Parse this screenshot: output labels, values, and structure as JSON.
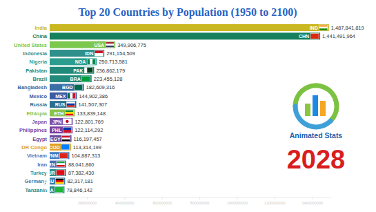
{
  "chart_data": {
    "type": "bar",
    "orientation": "horizontal",
    "title": "Top 20 Countries by Population (1950 to 2100)",
    "categories": [
      "India",
      "China",
      "United States",
      "Indonesia",
      "Nigeria",
      "Pakistan",
      "Brazil",
      "Bangladesh",
      "Mexico",
      "Russia",
      "Ethiopia",
      "Japan",
      "Philippines",
      "Egypt",
      "DR Congo",
      "Vietnam",
      "Iran",
      "Turkey",
      "Germany",
      "Tanzania"
    ],
    "codes": [
      "IND",
      "CHN",
      "USA",
      "IDN",
      "NGA",
      "PAK",
      "BRA",
      "BGD",
      "MEX",
      "RUS",
      "ETH",
      "JPN",
      "PHL",
      "EGY",
      "COD",
      "VNM",
      "IRN",
      "TUR",
      "DEU",
      "TZA"
    ],
    "values": [
      1487841819,
      1441491964,
      349906775,
      291154509,
      250713581,
      236862179,
      223455128,
      182609316,
      144902386,
      141507307,
      133839148,
      122801769,
      122114292,
      116197457,
      113314199,
      104887313,
      88041860,
      87382430,
      82317181,
      78846142
    ],
    "value_labels": [
      "1,487,841,819",
      "1,441,491,964",
      "349,906,775",
      "291,154,509",
      "250,713,581",
      "236,862,179",
      "223,455,128",
      "182,609,316",
      "144,902,386",
      "141,507,307",
      "133,839,148",
      "122,801,769",
      "122,114,292",
      "116,197,457",
      "113,314,199",
      "104,887,313",
      "88,041,860",
      "87,382,430",
      "82,317,181",
      "78,846,142"
    ],
    "colors": [
      "#c9b821",
      "#17805c",
      "#7cc84e",
      "#2f8f8a",
      "#2a9d8f",
      "#1f8a7a",
      "#238b7b",
      "#3a6ea5",
      "#3b5ba5",
      "#2a6f8f",
      "#8bc34a",
      "#7b52ab",
      "#7a3f9f",
      "#6a4c9c",
      "#e0a020",
      "#3b7cc0",
      "#4a6fb5",
      "#2a9090",
      "#3a7fb0",
      "#2a8a8a"
    ],
    "xlim": [
      0,
      1500000000
    ],
    "xticks": [
      200000000,
      400000000,
      600000000,
      800000000,
      1000000000,
      1200000000,
      1400000000
    ],
    "data_labels": true,
    "grid": false,
    "annotations": [
      "Animated Stats",
      "2028"
    ]
  }
}
